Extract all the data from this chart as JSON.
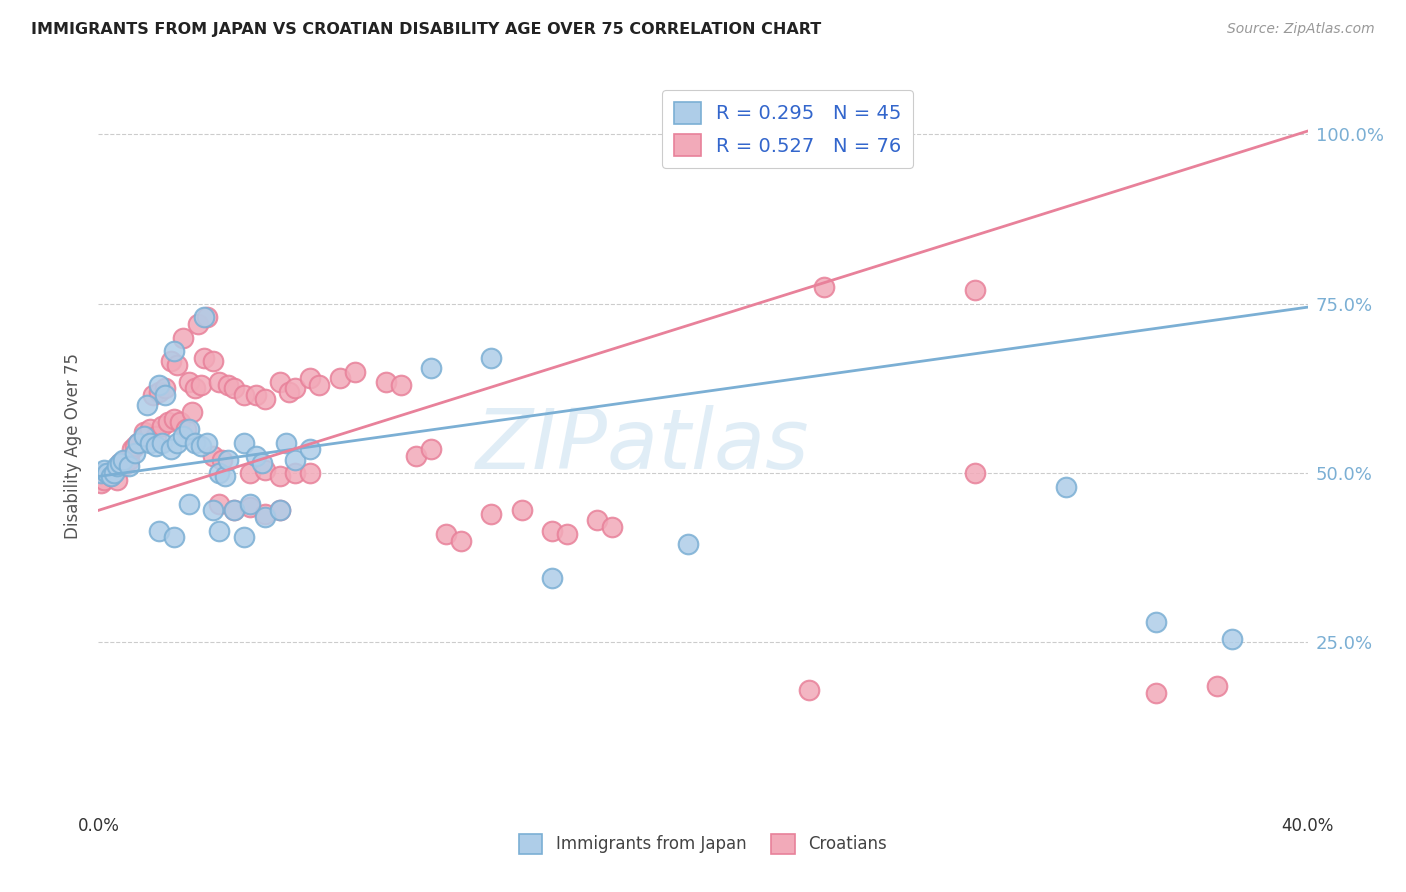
{
  "title": "IMMIGRANTS FROM JAPAN VS CROATIAN DISABILITY AGE OVER 75 CORRELATION CHART",
  "source": "Source: ZipAtlas.com",
  "ylabel": "Disability Age Over 75",
  "xlim": [
    0.0,
    0.4
  ],
  "ylim": [
    0.0,
    1.08
  ],
  "ytick_positions": [
    0.25,
    0.5,
    0.75,
    1.0
  ],
  "ytick_labels": [
    "25.0%",
    "50.0%",
    "75.0%",
    "100.0%"
  ],
  "xtick_positions": [
    0.0,
    0.05,
    0.1,
    0.15,
    0.2,
    0.25,
    0.3,
    0.35,
    0.4
  ],
  "xtick_labels": [
    "0.0%",
    "",
    "",
    "",
    "",
    "",
    "",
    "",
    "40.0%"
  ],
  "legend_labels_bottom": [
    "Immigrants from Japan",
    "Croatians"
  ],
  "blue_color": "#7bafd4",
  "pink_color": "#e8819a",
  "blue_face_color": "#aecde8",
  "pink_face_color": "#f2aab9",
  "trendline_blue": [
    0.0,
    0.495,
    0.4,
    0.745
  ],
  "trendline_pink": [
    0.0,
    0.445,
    0.4,
    1.005
  ],
  "watermark_text": "ZIPatlas",
  "blue_scatter": [
    [
      0.001,
      0.5
    ],
    [
      0.002,
      0.505
    ],
    [
      0.003,
      0.5
    ],
    [
      0.004,
      0.495
    ],
    [
      0.005,
      0.5
    ],
    [
      0.006,
      0.51
    ],
    [
      0.007,
      0.515
    ],
    [
      0.008,
      0.52
    ],
    [
      0.01,
      0.51
    ],
    [
      0.012,
      0.53
    ],
    [
      0.013,
      0.545
    ],
    [
      0.015,
      0.555
    ],
    [
      0.017,
      0.545
    ],
    [
      0.019,
      0.54
    ],
    [
      0.021,
      0.545
    ],
    [
      0.024,
      0.535
    ],
    [
      0.026,
      0.545
    ],
    [
      0.028,
      0.555
    ],
    [
      0.016,
      0.6
    ],
    [
      0.02,
      0.63
    ],
    [
      0.022,
      0.615
    ],
    [
      0.03,
      0.565
    ],
    [
      0.032,
      0.545
    ],
    [
      0.034,
      0.54
    ],
    [
      0.036,
      0.545
    ],
    [
      0.025,
      0.68
    ],
    [
      0.035,
      0.73
    ],
    [
      0.04,
      0.5
    ],
    [
      0.042,
      0.495
    ],
    [
      0.043,
      0.52
    ],
    [
      0.048,
      0.545
    ],
    [
      0.052,
      0.525
    ],
    [
      0.054,
      0.515
    ],
    [
      0.062,
      0.545
    ],
    [
      0.065,
      0.52
    ],
    [
      0.07,
      0.535
    ],
    [
      0.03,
      0.455
    ],
    [
      0.038,
      0.445
    ],
    [
      0.045,
      0.445
    ],
    [
      0.05,
      0.455
    ],
    [
      0.04,
      0.415
    ],
    [
      0.048,
      0.405
    ],
    [
      0.055,
      0.435
    ],
    [
      0.06,
      0.445
    ],
    [
      0.02,
      0.415
    ],
    [
      0.025,
      0.405
    ],
    [
      0.11,
      0.655
    ],
    [
      0.13,
      0.67
    ],
    [
      0.15,
      0.345
    ],
    [
      0.195,
      0.395
    ],
    [
      0.32,
      0.48
    ],
    [
      0.35,
      0.28
    ],
    [
      0.375,
      0.255
    ]
  ],
  "pink_scatter": [
    [
      0.001,
      0.485
    ],
    [
      0.002,
      0.49
    ],
    [
      0.003,
      0.5
    ],
    [
      0.004,
      0.495
    ],
    [
      0.005,
      0.505
    ],
    [
      0.006,
      0.49
    ],
    [
      0.007,
      0.515
    ],
    [
      0.008,
      0.51
    ],
    [
      0.009,
      0.52
    ],
    [
      0.01,
      0.52
    ],
    [
      0.011,
      0.535
    ],
    [
      0.012,
      0.54
    ],
    [
      0.013,
      0.545
    ],
    [
      0.015,
      0.56
    ],
    [
      0.016,
      0.555
    ],
    [
      0.017,
      0.565
    ],
    [
      0.019,
      0.555
    ],
    [
      0.021,
      0.57
    ],
    [
      0.023,
      0.575
    ],
    [
      0.025,
      0.58
    ],
    [
      0.027,
      0.575
    ],
    [
      0.029,
      0.565
    ],
    [
      0.031,
      0.59
    ],
    [
      0.018,
      0.615
    ],
    [
      0.02,
      0.62
    ],
    [
      0.022,
      0.625
    ],
    [
      0.03,
      0.635
    ],
    [
      0.032,
      0.625
    ],
    [
      0.034,
      0.63
    ],
    [
      0.024,
      0.665
    ],
    [
      0.026,
      0.66
    ],
    [
      0.035,
      0.67
    ],
    [
      0.038,
      0.665
    ],
    [
      0.04,
      0.635
    ],
    [
      0.043,
      0.63
    ],
    [
      0.045,
      0.625
    ],
    [
      0.048,
      0.615
    ],
    [
      0.052,
      0.615
    ],
    [
      0.055,
      0.61
    ],
    [
      0.06,
      0.635
    ],
    [
      0.063,
      0.62
    ],
    [
      0.065,
      0.625
    ],
    [
      0.07,
      0.64
    ],
    [
      0.073,
      0.63
    ],
    [
      0.028,
      0.7
    ],
    [
      0.033,
      0.72
    ],
    [
      0.036,
      0.73
    ],
    [
      0.038,
      0.525
    ],
    [
      0.041,
      0.52
    ],
    [
      0.05,
      0.5
    ],
    [
      0.055,
      0.505
    ],
    [
      0.06,
      0.495
    ],
    [
      0.065,
      0.5
    ],
    [
      0.07,
      0.5
    ],
    [
      0.04,
      0.455
    ],
    [
      0.045,
      0.445
    ],
    [
      0.05,
      0.45
    ],
    [
      0.055,
      0.44
    ],
    [
      0.06,
      0.445
    ],
    [
      0.08,
      0.64
    ],
    [
      0.085,
      0.65
    ],
    [
      0.095,
      0.635
    ],
    [
      0.1,
      0.63
    ],
    [
      0.105,
      0.525
    ],
    [
      0.11,
      0.535
    ],
    [
      0.115,
      0.41
    ],
    [
      0.12,
      0.4
    ],
    [
      0.13,
      0.44
    ],
    [
      0.14,
      0.445
    ],
    [
      0.15,
      0.415
    ],
    [
      0.155,
      0.41
    ],
    [
      0.165,
      0.43
    ],
    [
      0.17,
      0.42
    ],
    [
      0.24,
      0.775
    ],
    [
      0.29,
      0.77
    ],
    [
      0.35,
      0.175
    ],
    [
      0.37,
      0.185
    ],
    [
      0.29,
      0.5
    ],
    [
      0.235,
      0.18
    ]
  ]
}
